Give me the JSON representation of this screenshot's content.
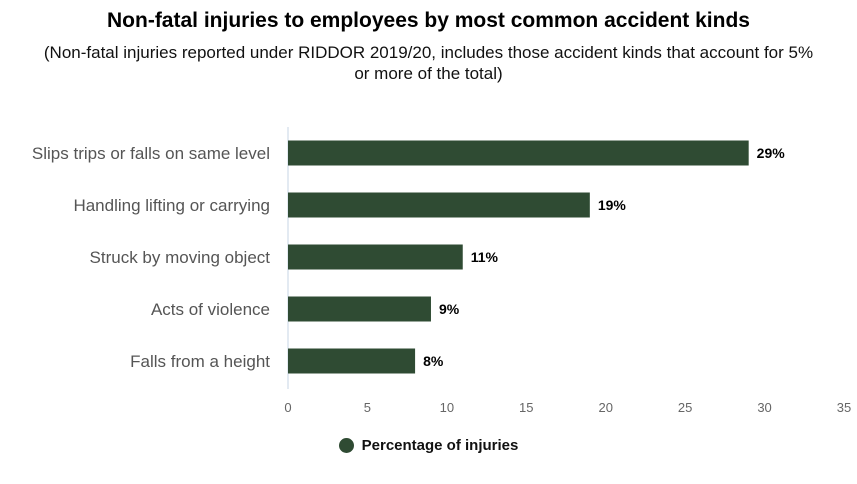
{
  "colors": {
    "bar": "#2f4b33",
    "axis": "#c7d6e6",
    "tick_text": "#666666",
    "category_text": "#555555"
  },
  "chart_data": {
    "type": "bar",
    "orientation": "horizontal",
    "title": "Non-fatal injuries to employees by most common accident kinds",
    "subtitle": "(Non-fatal injuries reported under RIDDOR 2019/20, includes those accident kinds that account for 5% or more of the total)",
    "categories": [
      "Slips trips or falls on same level",
      "Handling lifting or carrying",
      "Struck by moving object",
      "Acts of violence",
      "Falls from a height"
    ],
    "series": [
      {
        "name": "Percentage of injuries",
        "values": [
          29,
          19,
          11,
          9,
          8
        ]
      }
    ],
    "data_labels": [
      "29%",
      "19%",
      "11%",
      "9%",
      "8%"
    ],
    "xlim": [
      0,
      35
    ],
    "xticks": [
      "0",
      "5",
      "10",
      "15",
      "20",
      "25",
      "30",
      "35"
    ],
    "grid": false,
    "legend": "bottom-center"
  }
}
